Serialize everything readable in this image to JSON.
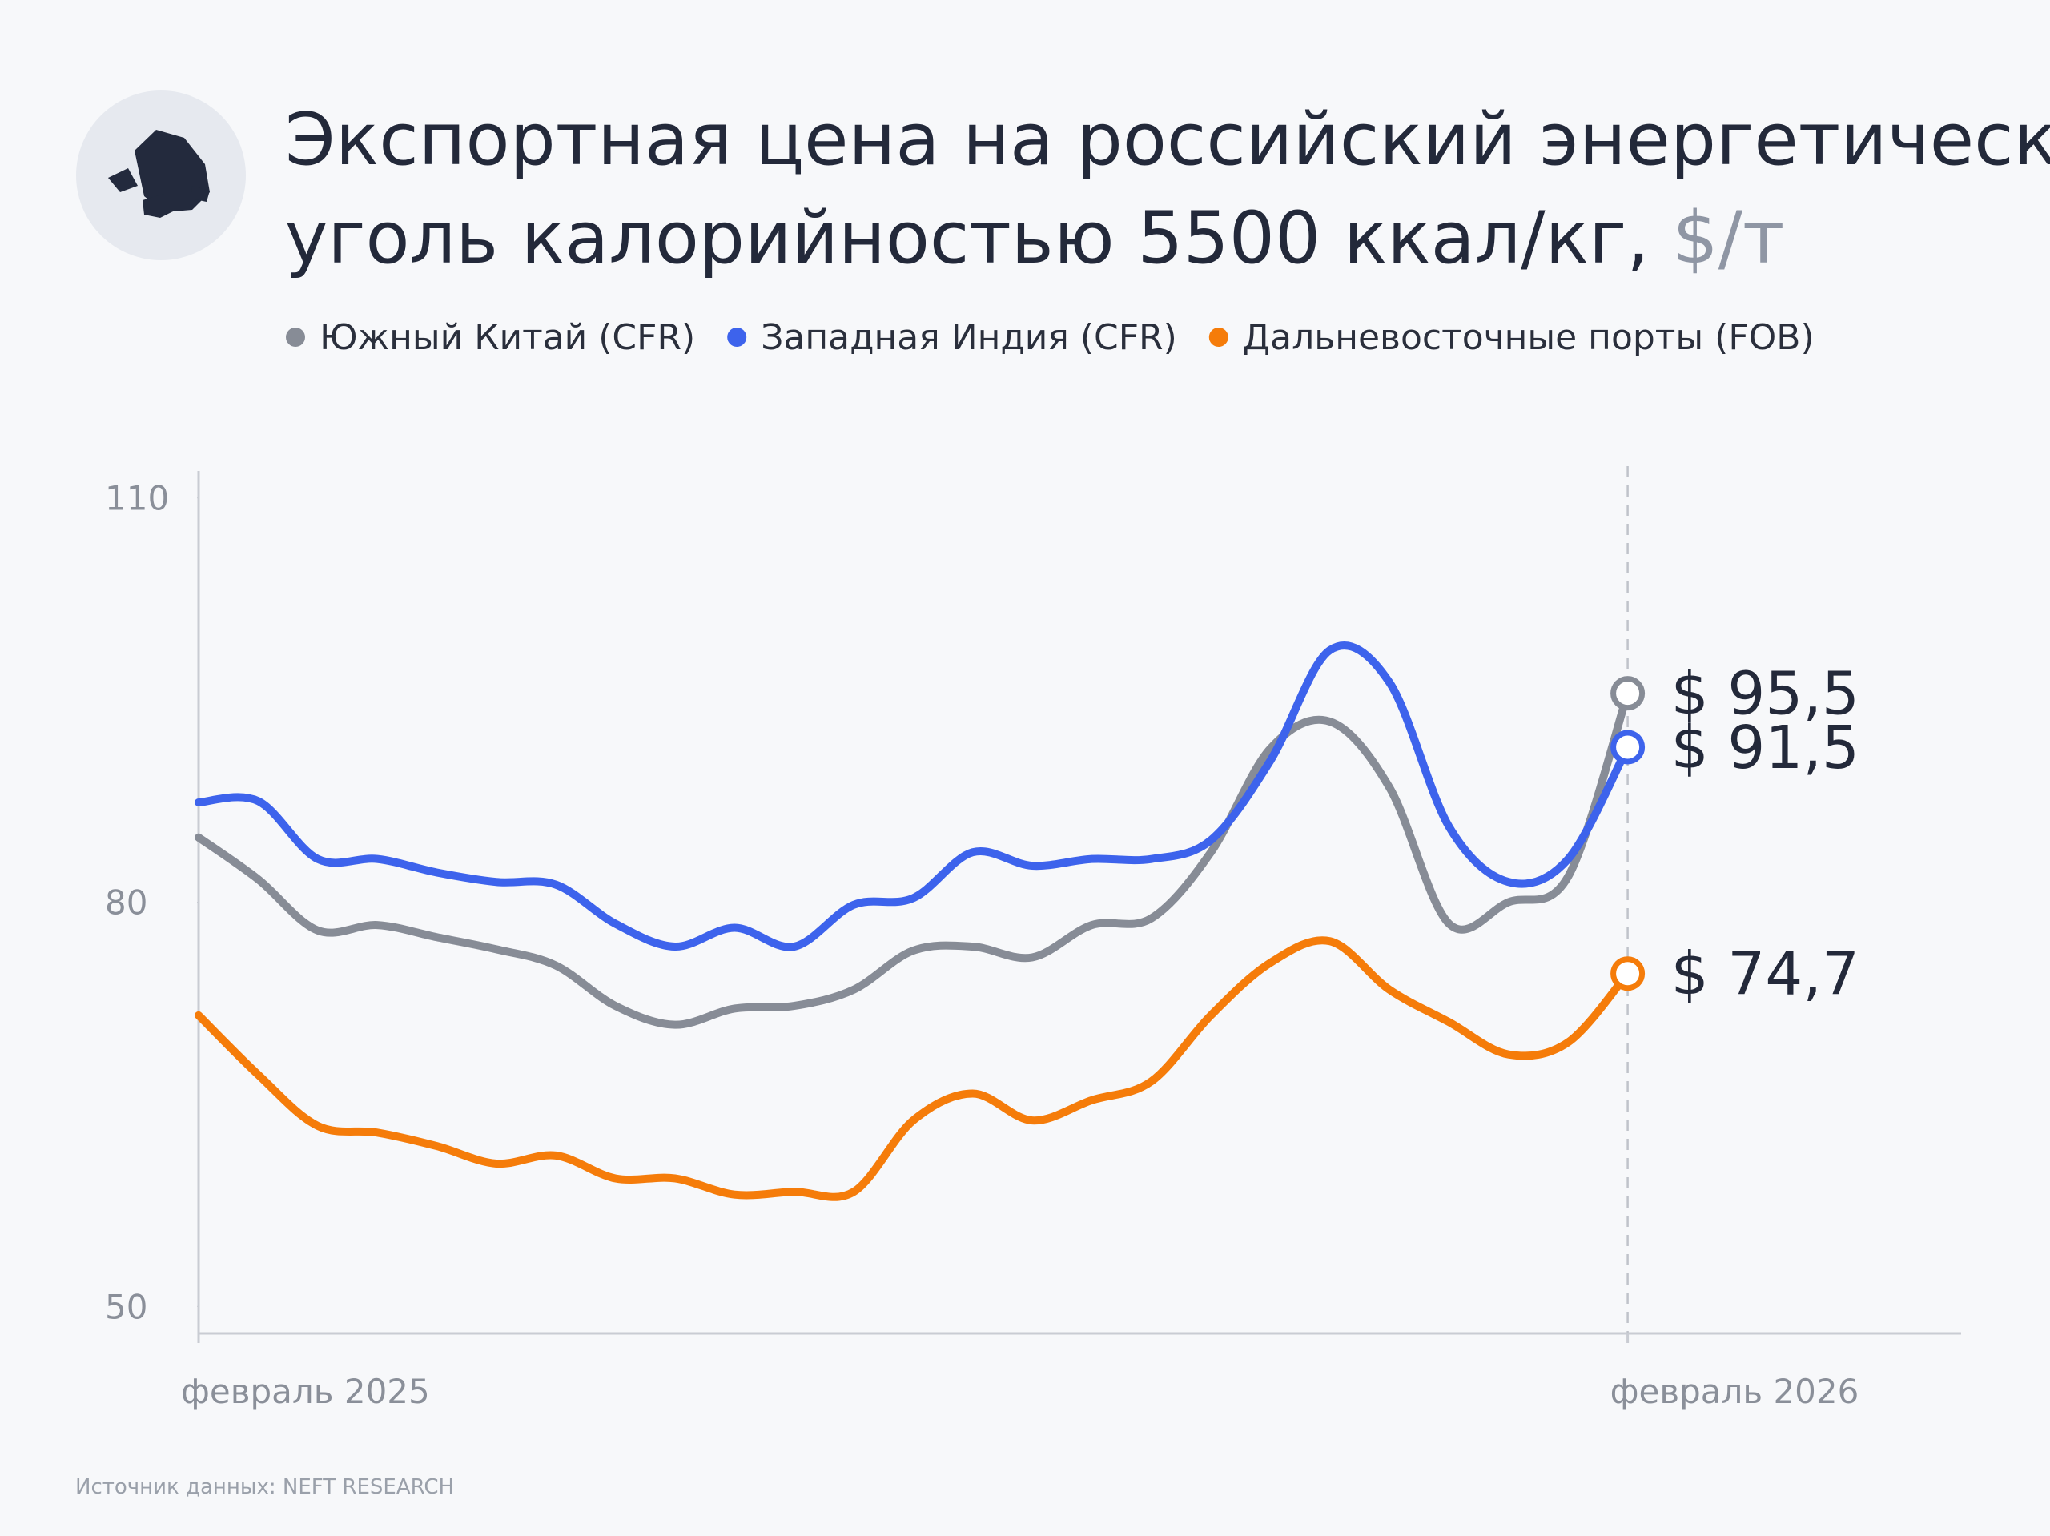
{
  "chart_data": {
    "type": "line",
    "title_lines": [
      "Экспортная цена на российский энергетический",
      "уголь калорийностью 5500 ккал/кг,"
    ],
    "title_unit": "$/т",
    "source": "Источник данных: NEFT RESEARCH",
    "x": [
      0,
      0.5,
      1,
      1.5,
      2,
      2.5,
      3,
      3.5,
      4,
      4.5,
      5,
      5.5,
      6,
      6.5,
      7,
      7.5,
      8,
      8.5,
      9,
      9.5,
      10,
      10.5,
      11,
      11.5,
      12
    ],
    "xlim": [
      0,
      14.8
    ],
    "xticks": [
      {
        "value": 0,
        "label": "февраль 2025"
      },
      {
        "value": 12,
        "label": "февраль 2026"
      }
    ],
    "ylim": [
      48,
      112
    ],
    "yticks": [
      50,
      80,
      110
    ],
    "series": [
      {
        "name": "Южный Китай (CFR)",
        "color": "#878c96",
        "values": [
          84.8,
          81.7,
          77.9,
          78.3,
          77.4,
          76.5,
          75.3,
          72.3,
          70.9,
          72.1,
          72.3,
          73.5,
          76.4,
          76.7,
          75.9,
          78.3,
          78.8,
          83.7,
          91.4,
          93.4,
          88.5,
          78.4,
          80.0,
          81.9,
          95.5
        ],
        "end_label": "$ 95,5"
      },
      {
        "name": "Западная Индия (CFR)",
        "color": "#3d63ec",
        "values": [
          87.4,
          87.5,
          83.2,
          83.2,
          82.2,
          81.5,
          81.3,
          78.4,
          76.7,
          78.1,
          76.7,
          79.8,
          80.3,
          83.7,
          82.7,
          83.2,
          83.2,
          84.6,
          90.5,
          98.7,
          96.3,
          85.6,
          81.5,
          83.2,
          91.5
        ],
        "end_label": "$ 91,5"
      },
      {
        "name": "Дальневосточные порты (FOB)",
        "color": "#f57c0a",
        "values": [
          71.6,
          67.2,
          63.4,
          62.9,
          61.9,
          60.6,
          61.2,
          59.5,
          59.5,
          58.3,
          58.5,
          58.5,
          63.8,
          65.8,
          63.8,
          65.3,
          66.7,
          71.6,
          75.5,
          77.1,
          73.5,
          71.1,
          68.7,
          69.6,
          74.7
        ],
        "end_label": "$ 74,7"
      }
    ]
  }
}
